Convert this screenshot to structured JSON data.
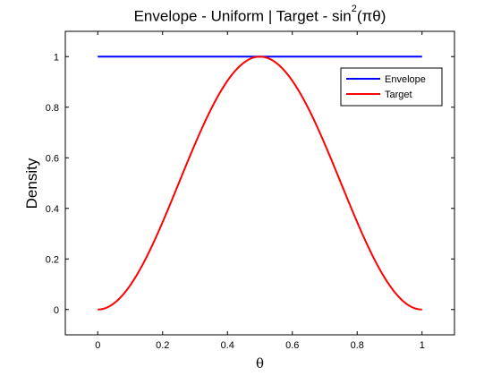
{
  "chart_data": {
    "type": "line",
    "title": {
      "before": "Envelope - Uniform | Target - sin",
      "sup": "2",
      "after": "(πθ)"
    },
    "xlabel": "θ",
    "ylabel": "Density",
    "xlim": [
      -0.1,
      1.1
    ],
    "ylim": [
      -0.1,
      1.1
    ],
    "xticks": [
      0,
      0.2,
      0.4,
      0.6,
      0.8,
      1
    ],
    "xtick_labels": [
      "0",
      "0.2",
      "0.4",
      "0.6",
      "0.8",
      "1"
    ],
    "yticks": [
      0,
      0.2,
      0.4,
      0.6,
      0.8,
      1
    ],
    "ytick_labels": [
      "0",
      "0.2",
      "0.4",
      "0.6",
      "0.8",
      "1"
    ],
    "grid": false,
    "legend_position": "top-right",
    "series": [
      {
        "name": "Envelope",
        "color": "#0000ff",
        "x": [
          0,
          1
        ],
        "y": [
          1,
          1
        ]
      },
      {
        "name": "Target",
        "color": "#ff0000",
        "x": [
          0,
          0.05,
          0.1,
          0.15,
          0.2,
          0.25,
          0.3,
          0.35,
          0.4,
          0.45,
          0.5,
          0.55,
          0.6,
          0.65,
          0.7,
          0.75,
          0.8,
          0.85,
          0.9,
          0.95,
          1
        ],
        "y": [
          0,
          0.024,
          0.095,
          0.206,
          0.345,
          0.5,
          0.655,
          0.794,
          0.905,
          0.976,
          1,
          0.976,
          0.905,
          0.794,
          0.655,
          0.5,
          0.345,
          0.206,
          0.095,
          0.024,
          0
        ]
      }
    ]
  }
}
